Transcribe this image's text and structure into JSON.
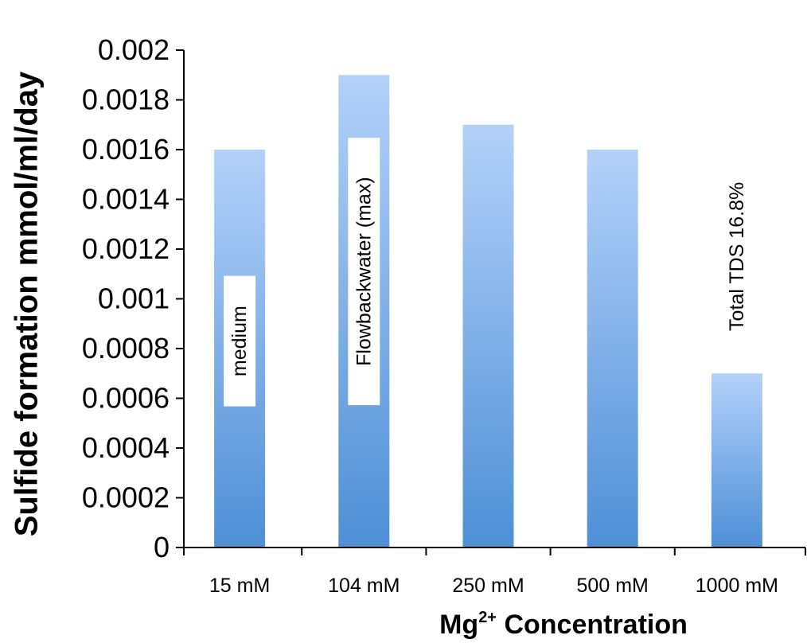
{
  "chart_data": {
    "type": "bar",
    "title": "",
    "ylabel": "Sulfide formation mmol/ml/day",
    "xlabel": {
      "base": "Mg",
      "superscript": "2+",
      "suffix": " Concentration"
    },
    "categories": [
      "15 mM",
      "104 mM",
      "250 mM",
      "500 mM",
      "1000 mM"
    ],
    "values": [
      0.0016,
      0.0019,
      0.0017,
      0.0016,
      0.0007
    ],
    "ylim": [
      0,
      0.002
    ],
    "yticks": [
      "0",
      "0.0002",
      "0.0004",
      "0.0006",
      "0.0008",
      "0.001",
      "0.0012",
      "0.0014",
      "0.0016",
      "0.0018",
      "0.002"
    ],
    "grid": false,
    "legend": "none",
    "bar_color_top": "#b3d1fa",
    "bar_color_bottom": "#4e8fd6",
    "annotations": [
      {
        "text": "medium",
        "category": "15 mM",
        "y_center": 0.00083
      },
      {
        "text": "Flowbackwater  (max)",
        "category": "104 mM",
        "y_center": 0.00111
      },
      {
        "text": "Total TDS 16.8%",
        "category": "1000 mM",
        "y_center": 0.00117
      }
    ]
  }
}
